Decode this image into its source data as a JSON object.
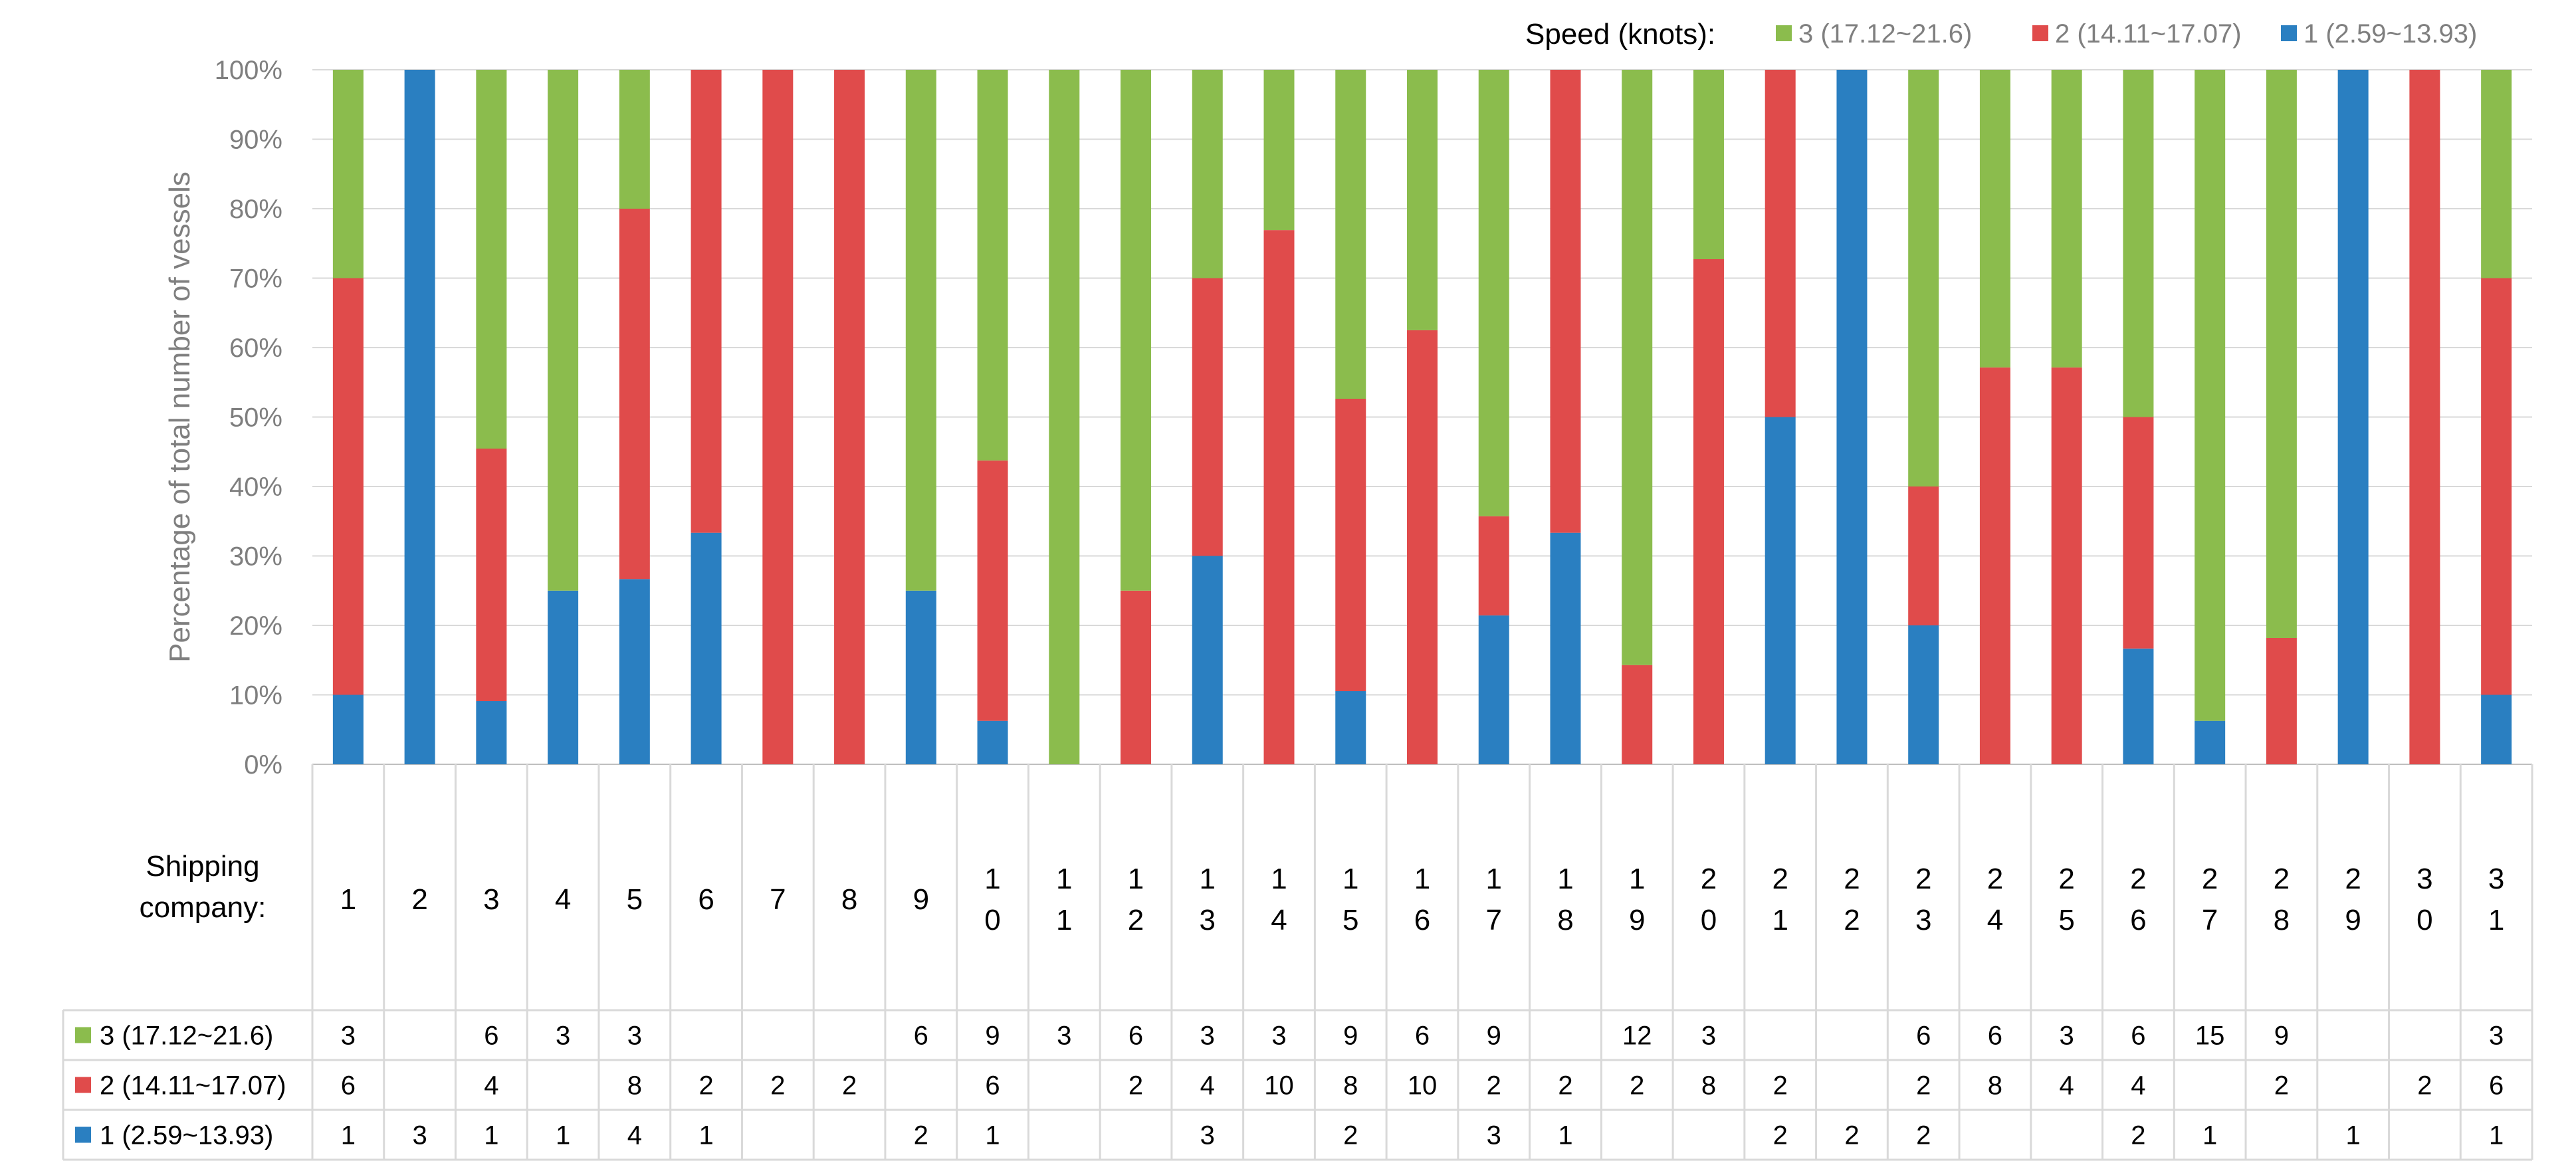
{
  "chart_data": {
    "type": "bar",
    "stacked": "percent",
    "ylabel": "Percentage of total number of vessels",
    "yticks": [
      "0%",
      "10%",
      "20%",
      "30%",
      "40%",
      "50%",
      "60%",
      "70%",
      "80%",
      "90%",
      "100%"
    ],
    "xaxis_title": [
      "Shipping",
      "company:"
    ],
    "legend_title": "Speed (knots):",
    "legend_position": "top-right",
    "grid": true,
    "categories": [
      [
        "1"
      ],
      [
        "2"
      ],
      [
        "3"
      ],
      [
        "4"
      ],
      [
        "5"
      ],
      [
        "6"
      ],
      [
        "7"
      ],
      [
        "8"
      ],
      [
        "9"
      ],
      [
        "1",
        "0"
      ],
      [
        "1",
        "1"
      ],
      [
        "1",
        "2"
      ],
      [
        "1",
        "3"
      ],
      [
        "1",
        "4"
      ],
      [
        "1",
        "5"
      ],
      [
        "1",
        "6"
      ],
      [
        "1",
        "7"
      ],
      [
        "1",
        "8"
      ],
      [
        "1",
        "9"
      ],
      [
        "2",
        "0"
      ],
      [
        "2",
        "1"
      ],
      [
        "2",
        "2"
      ],
      [
        "2",
        "3"
      ],
      [
        "2",
        "4"
      ],
      [
        "2",
        "5"
      ],
      [
        "2",
        "6"
      ],
      [
        "2",
        "7"
      ],
      [
        "2",
        "8"
      ],
      [
        "2",
        "9"
      ],
      [
        "3",
        "0"
      ],
      [
        "3",
        "1"
      ]
    ],
    "series": [
      {
        "name": "1 (2.59~13.93)",
        "color": "#2a7fc1",
        "values": [
          1,
          3,
          1,
          1,
          4,
          1,
          null,
          null,
          2,
          1,
          null,
          null,
          3,
          null,
          2,
          null,
          3,
          1,
          null,
          null,
          2,
          2,
          2,
          null,
          null,
          2,
          1,
          null,
          1,
          null,
          1
        ]
      },
      {
        "name": "2 (14.11~17.07)",
        "color": "#e04b4b",
        "values": [
          6,
          null,
          4,
          null,
          8,
          2,
          2,
          2,
          null,
          6,
          null,
          2,
          4,
          10,
          8,
          10,
          2,
          2,
          2,
          8,
          2,
          null,
          2,
          8,
          4,
          4,
          null,
          2,
          null,
          2,
          6
        ]
      },
      {
        "name": "3 (17.12~21.6)",
        "color": "#8bbc4d",
        "values": [
          3,
          null,
          6,
          3,
          3,
          null,
          null,
          null,
          6,
          9,
          3,
          6,
          3,
          3,
          9,
          6,
          9,
          null,
          12,
          3,
          null,
          null,
          6,
          6,
          3,
          6,
          15,
          9,
          null,
          null,
          3
        ]
      }
    ]
  }
}
